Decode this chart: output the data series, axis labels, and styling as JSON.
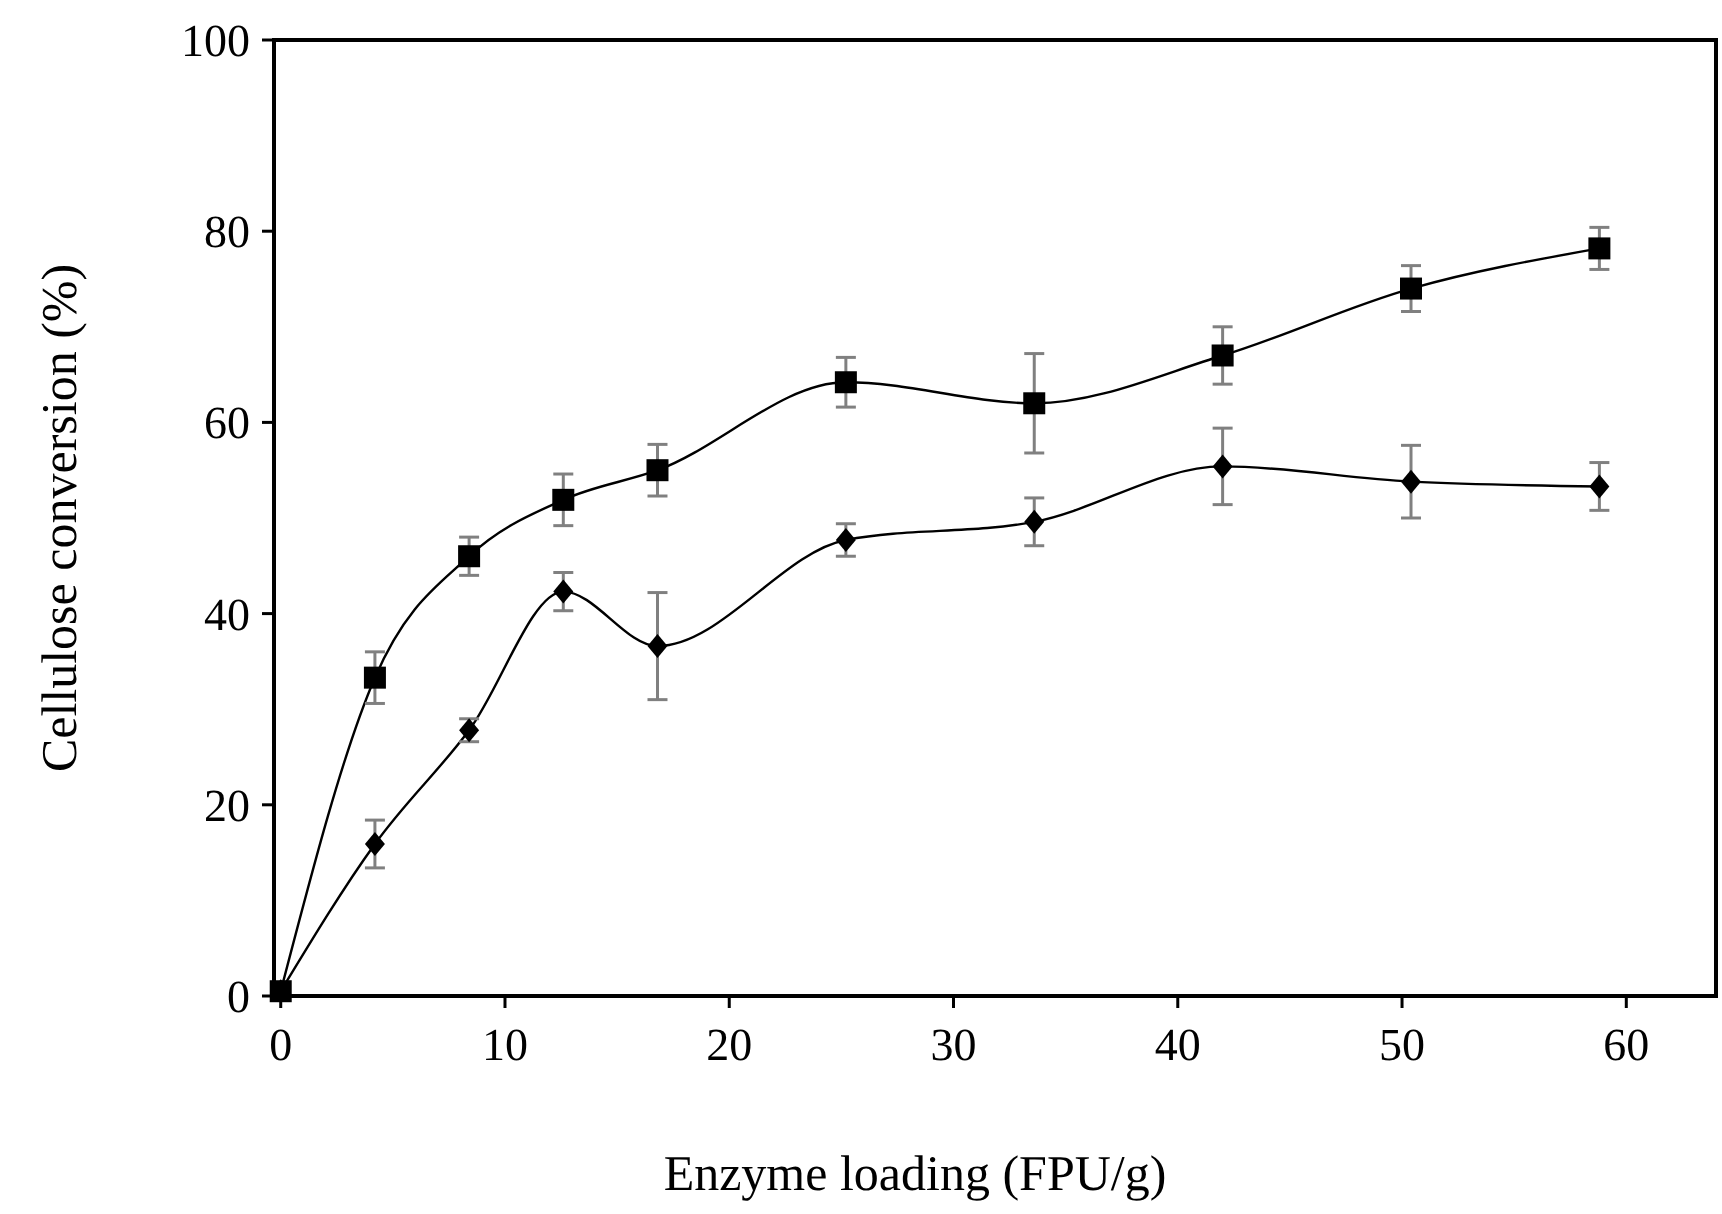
{
  "chart_data": {
    "type": "line",
    "xlabel": "Enzyme loading (FPU/g)",
    "ylabel": "Cellulose conversion (%)",
    "x": [
      0,
      4.2,
      8.4,
      12.6,
      16.8,
      25.2,
      33.6,
      42,
      50.4,
      58.8
    ],
    "xlim": [
      -0.3,
      64
    ],
    "xticks": [
      0,
      10,
      20,
      30,
      40,
      50,
      60
    ],
    "ylim": [
      0,
      100
    ],
    "yticks": [
      0,
      20,
      40,
      60,
      80,
      100
    ],
    "grid": false,
    "line_style": "solid",
    "series": [
      {
        "color": "#000000",
        "marker": "square",
        "values": [
          0.5,
          33.3,
          46,
          51.9,
          55,
          64.2,
          62,
          67,
          74,
          78.2
        ],
        "errors": [
          null,
          2.7,
          2,
          2.7,
          2.7,
          2.6,
          5.2,
          3,
          2.4,
          2.2
        ]
      },
      {
        "color": "#000000",
        "marker": "diamond",
        "values": [
          0.5,
          15.9,
          27.8,
          42.3,
          36.6,
          47.7,
          49.6,
          55.4,
          53.8,
          53.3
        ],
        "errors": [
          null,
          2.5,
          1.2,
          2,
          5.6,
          1.7,
          2.5,
          4,
          3.8,
          2.5
        ]
      }
    ]
  }
}
